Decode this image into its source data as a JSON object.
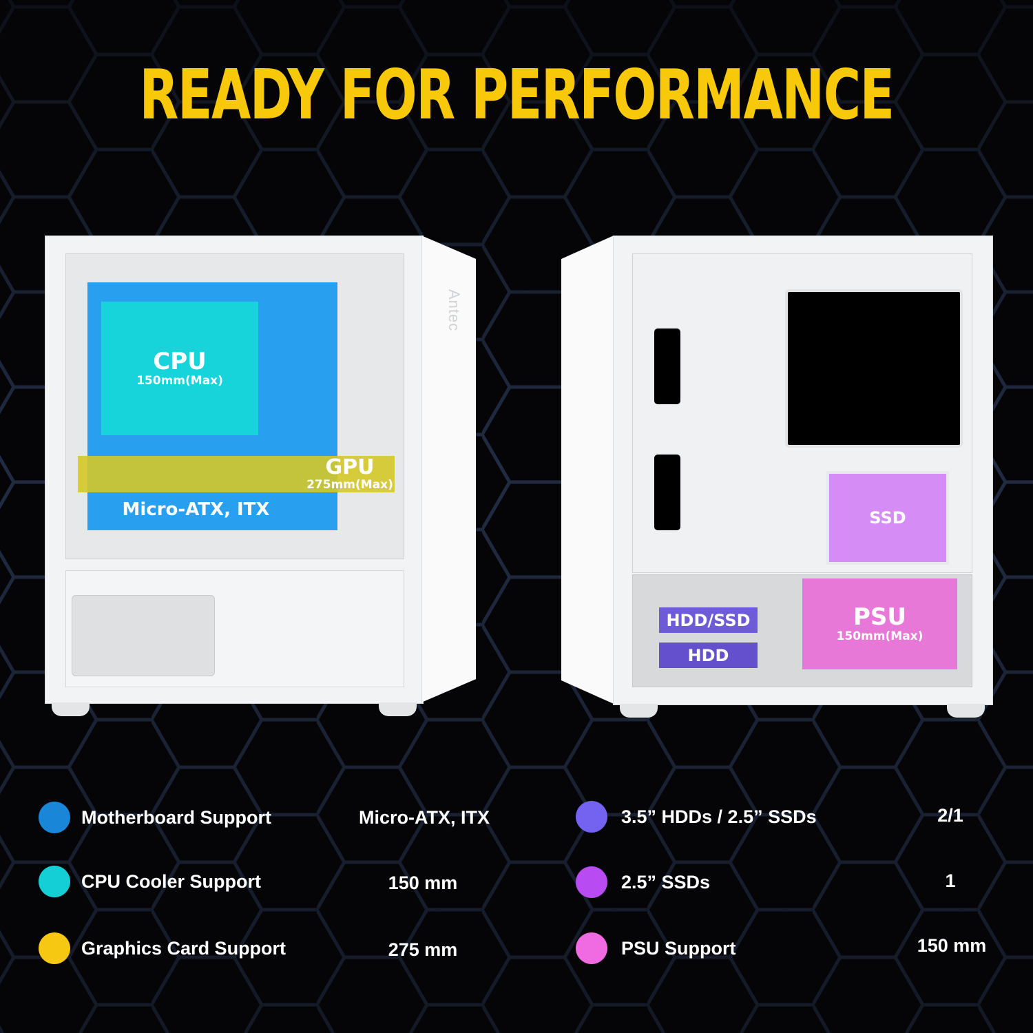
{
  "title": "READY FOR PERFORMANCE",
  "colors": {
    "title": "#f7c90a",
    "motherboard": "#1a86d8",
    "cpu": "#15cfd6",
    "gpu": "#f6c811",
    "hdd": "#7462f0",
    "ssd": "#b84cf2",
    "psu": "#f06ae2"
  },
  "left_case": {
    "brand": "Antec",
    "cpu": {
      "label": "CPU",
      "sub": "150mm(Max)"
    },
    "gpu": {
      "label": "GPU",
      "sub": "275mm(Max)"
    },
    "motherboard": {
      "label": "Micro-ATX, ITX"
    }
  },
  "right_case": {
    "ssd": {
      "label": "SSD"
    },
    "hdd_ssd": {
      "label": "HDD/SSD"
    },
    "hdd": {
      "label": "HDD"
    },
    "psu": {
      "label": "PSU",
      "sub": "150mm(Max)"
    }
  },
  "specs_left": [
    {
      "icon": "motherboard-dot",
      "label": "Motherboard Support",
      "value": "Micro-ATX, ITX"
    },
    {
      "icon": "cpu-dot",
      "label": "CPU Cooler Support",
      "value": "150 mm"
    },
    {
      "icon": "gpu-dot",
      "label": "Graphics Card Support",
      "value": "275 mm"
    }
  ],
  "specs_right": [
    {
      "icon": "hdd-dot",
      "label": "3.5” HDDs / 2.5” SSDs",
      "value": "2/1"
    },
    {
      "icon": "ssd-dot",
      "label": "2.5” SSDs",
      "value": "1"
    },
    {
      "icon": "psu-dot",
      "label": "PSU Support",
      "value": "150 mm"
    }
  ]
}
